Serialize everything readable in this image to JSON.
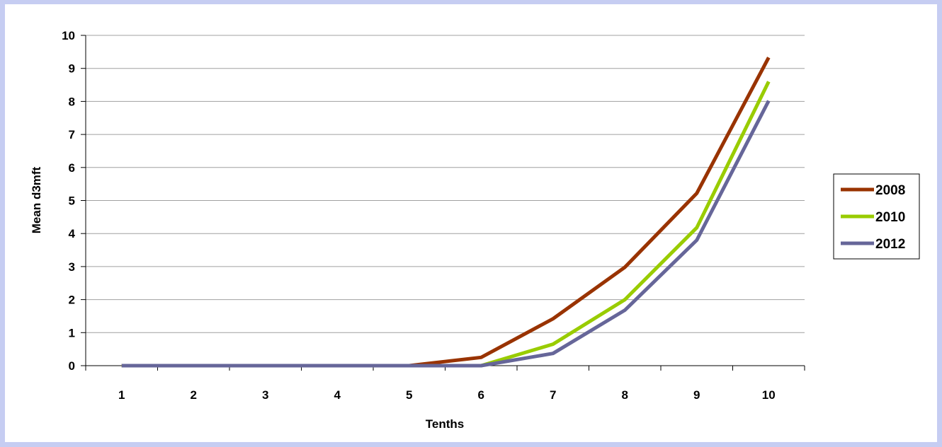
{
  "chart_data": {
    "type": "line",
    "xlabel": "Tenths",
    "ylabel": "Mean d3mft",
    "categories": [
      "1",
      "2",
      "3",
      "4",
      "5",
      "6",
      "7",
      "8",
      "9",
      "10"
    ],
    "ylim": [
      0,
      10
    ],
    "yticks": [
      "0",
      "1",
      "2",
      "3",
      "4",
      "5",
      "6",
      "7",
      "8",
      "9",
      "10"
    ],
    "grid": "horizontal",
    "legend_position": "right",
    "series": [
      {
        "name": "2008",
        "color": "#993300",
        "values": [
          0,
          0,
          0,
          0,
          0,
          0.25,
          1.42,
          2.98,
          5.22,
          9.33
        ]
      },
      {
        "name": "2010",
        "color": "#99cc00",
        "values": [
          0,
          0,
          0,
          0,
          0,
          0,
          0.65,
          2.0,
          4.18,
          8.6
        ]
      },
      {
        "name": "2012",
        "color": "#666699",
        "values": [
          0,
          0,
          0,
          0,
          0,
          0,
          0.37,
          1.68,
          3.8,
          8.02
        ]
      }
    ]
  }
}
